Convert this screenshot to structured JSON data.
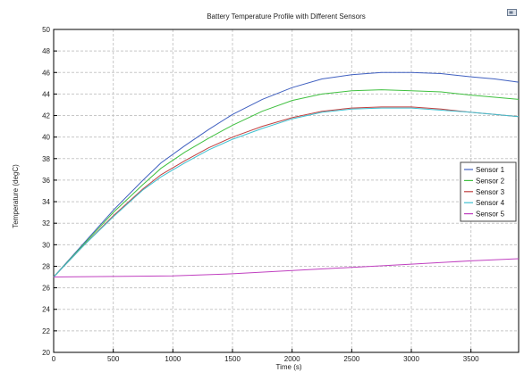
{
  "chart_data": {
    "type": "line",
    "title": "Battery Temperature Profile with Different Sensors",
    "xlabel": "Time (s)",
    "ylabel": "Temperature (degC)",
    "xlim": [
      0,
      3900
    ],
    "ylim": [
      20,
      50
    ],
    "xticks": [
      0,
      500,
      1000,
      1500,
      2000,
      2500,
      3000,
      3500
    ],
    "yticks": [
      20,
      22,
      24,
      26,
      28,
      30,
      32,
      34,
      36,
      38,
      40,
      42,
      44,
      46,
      48,
      50
    ],
    "grid": true,
    "legend_position": "right",
    "series": [
      {
        "name": "Sensor 1",
        "color": "#4060c0",
        "x": [
          0,
          250,
          500,
          750,
          900,
          1100,
          1300,
          1500,
          1750,
          2000,
          2250,
          2500,
          2750,
          3000,
          3250,
          3500,
          3700,
          3900
        ],
        "y": [
          27.0,
          30.1,
          33.2,
          36.0,
          37.6,
          39.2,
          40.7,
          42.1,
          43.5,
          44.6,
          45.4,
          45.8,
          46.0,
          46.0,
          45.9,
          45.6,
          45.4,
          45.1
        ]
      },
      {
        "name": "Sensor 2",
        "color": "#40c040",
        "x": [
          0,
          250,
          500,
          750,
          900,
          1100,
          1300,
          1500,
          1750,
          2000,
          2250,
          2500,
          2750,
          3000,
          3250,
          3500,
          3700,
          3900
        ],
        "y": [
          27.0,
          30.0,
          33.0,
          35.6,
          37.1,
          38.6,
          39.9,
          41.1,
          42.4,
          43.4,
          44.0,
          44.3,
          44.4,
          44.3,
          44.2,
          43.9,
          43.7,
          43.5
        ]
      },
      {
        "name": "Sensor 3",
        "color": "#c04040",
        "x": [
          0,
          250,
          500,
          750,
          900,
          1100,
          1300,
          1500,
          1750,
          2000,
          2250,
          2500,
          2750,
          3000,
          3250,
          3500,
          3700,
          3900
        ],
        "y": [
          27.0,
          29.9,
          32.7,
          35.2,
          36.5,
          37.8,
          39.0,
          40.0,
          41.0,
          41.8,
          42.4,
          42.7,
          42.8,
          42.8,
          42.6,
          42.3,
          42.1,
          41.9
        ]
      },
      {
        "name": "Sensor 4",
        "color": "#40c0d0",
        "x": [
          0,
          250,
          500,
          750,
          900,
          1100,
          1300,
          1500,
          1750,
          2000,
          2250,
          2500,
          2750,
          3000,
          3250,
          3500,
          3700,
          3900
        ],
        "y": [
          27.0,
          29.9,
          32.6,
          35.1,
          36.3,
          37.6,
          38.8,
          39.8,
          40.8,
          41.7,
          42.3,
          42.6,
          42.7,
          42.7,
          42.5,
          42.3,
          42.1,
          41.9
        ]
      },
      {
        "name": "Sensor 5",
        "color": "#c040c0",
        "x": [
          0,
          500,
          1000,
          1500,
          2000,
          2500,
          3000,
          3500,
          3900
        ],
        "y": [
          27.0,
          27.05,
          27.1,
          27.3,
          27.6,
          27.9,
          28.2,
          28.5,
          28.7
        ]
      }
    ]
  }
}
